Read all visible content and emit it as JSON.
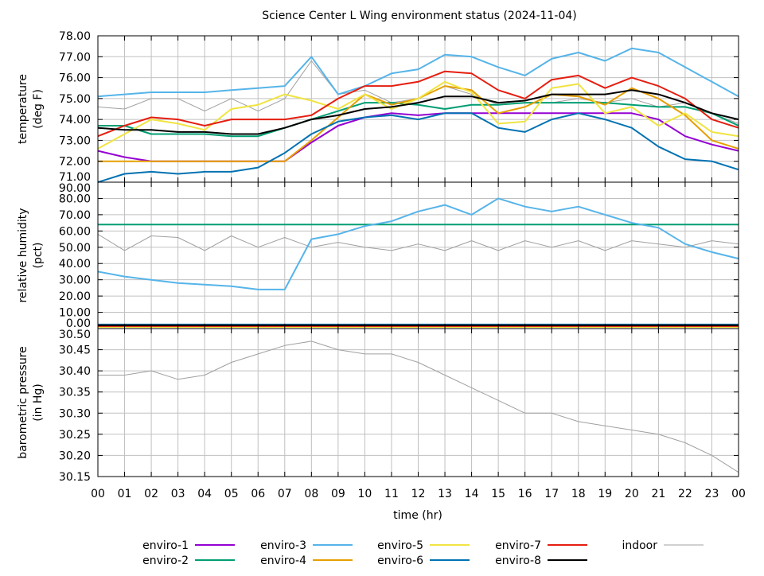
{
  "chart_data": {
    "type": "line",
    "title": "Science Center L Wing environment status (2024-11-04)",
    "xlabel": "time (hr)",
    "x_tick_labels": [
      "00",
      "01",
      "02",
      "03",
      "04",
      "05",
      "06",
      "07",
      "08",
      "09",
      "10",
      "11",
      "12",
      "13",
      "14",
      "15",
      "16",
      "17",
      "18",
      "19",
      "20",
      "21",
      "22",
      "23",
      "00"
    ],
    "xlim": [
      0,
      24
    ],
    "grid": true,
    "legend_position": "bottom",
    "x": [
      0,
      1,
      2,
      3,
      4,
      5,
      6,
      7,
      8,
      9,
      10,
      11,
      12,
      13,
      14,
      15,
      16,
      17,
      18,
      19,
      20,
      21,
      22,
      23,
      24
    ],
    "series_styles": [
      {
        "name": "enviro-1",
        "color": "#9400d3"
      },
      {
        "name": "enviro-2",
        "color": "#009e73"
      },
      {
        "name": "enviro-3",
        "color": "#56b4e9"
      },
      {
        "name": "enviro-4",
        "color": "#e69f00"
      },
      {
        "name": "enviro-5",
        "color": "#f0e442"
      },
      {
        "name": "enviro-6",
        "color": "#0072b2"
      },
      {
        "name": "enviro-7",
        "color": "#e51e10"
      },
      {
        "name": "enviro-8",
        "color": "#000000"
      },
      {
        "name": "indoor",
        "color": "#a0a0a0"
      }
    ],
    "panels": [
      {
        "ylabel": "temperature\n(deg F)",
        "ylim": [
          71,
          78
        ],
        "y_tick_labels": [
          "78.00",
          "77.00",
          "76.00",
          "75.00",
          "74.00",
          "73.00",
          "72.00",
          "71.00"
        ],
        "series": [
          {
            "name": "enviro-1",
            "values": [
              72.5,
              72.2,
              72.0,
              72.0,
              72.0,
              72.0,
              72.0,
              72.0,
              72.9,
              73.7,
              74.1,
              74.3,
              74.2,
              74.3,
              74.3,
              74.3,
              74.3,
              74.3,
              74.3,
              74.3,
              74.3,
              74.0,
              73.2,
              72.8,
              72.5
            ]
          },
          {
            "name": "enviro-2",
            "values": [
              73.7,
              73.7,
              73.3,
              73.3,
              73.3,
              73.2,
              73.2,
              73.6,
              74.0,
              74.4,
              74.8,
              74.8,
              74.7,
              74.5,
              74.7,
              74.7,
              74.8,
              74.8,
              74.8,
              74.8,
              74.7,
              74.6,
              74.6,
              74.3,
              73.7
            ]
          },
          {
            "name": "enviro-3",
            "values": [
              75.1,
              75.2,
              75.3,
              75.3,
              75.3,
              75.4,
              75.5,
              75.6,
              77.0,
              75.2,
              75.6,
              76.2,
              76.4,
              77.1,
              77.0,
              76.5,
              76.1,
              76.9,
              77.2,
              76.8,
              77.4,
              77.2,
              76.5,
              75.8,
              75.1
            ]
          },
          {
            "name": "enviro-4",
            "values": [
              72.0,
              72.0,
              72.0,
              72.0,
              72.0,
              72.0,
              72.0,
              72.0,
              73.0,
              74.1,
              75.2,
              74.7,
              75.0,
              75.6,
              75.4,
              74.3,
              74.6,
              75.2,
              75.1,
              74.7,
              75.5,
              75.0,
              74.2,
              73.0,
              72.6
            ]
          },
          {
            "name": "enviro-5",
            "values": [
              72.6,
              73.3,
              74.0,
              73.8,
              73.5,
              74.5,
              74.7,
              75.2,
              74.9,
              74.5,
              75.2,
              74.5,
              75.0,
              75.8,
              75.3,
              73.8,
              73.9,
              75.5,
              75.7,
              74.3,
              74.6,
              73.7,
              74.3,
              73.4,
              73.2
            ]
          },
          {
            "name": "enviro-6",
            "values": [
              71.0,
              71.4,
              71.5,
              71.4,
              71.5,
              71.5,
              71.7,
              72.4,
              73.3,
              73.9,
              74.1,
              74.2,
              74.0,
              74.3,
              74.3,
              73.6,
              73.4,
              74.0,
              74.3,
              74.0,
              73.6,
              72.7,
              72.1,
              72.0,
              71.6
            ]
          },
          {
            "name": "enviro-7",
            "values": [
              73.2,
              73.7,
              74.1,
              74.0,
              73.7,
              74.0,
              74.0,
              74.0,
              74.2,
              75.0,
              75.6,
              75.6,
              75.8,
              76.3,
              76.2,
              75.4,
              75.0,
              75.9,
              76.1,
              75.5,
              76.0,
              75.6,
              75.0,
              74.0,
              73.6
            ]
          },
          {
            "name": "enviro-8",
            "values": [
              73.6,
              73.5,
              73.5,
              73.4,
              73.4,
              73.3,
              73.3,
              73.6,
              74.0,
              74.2,
              74.5,
              74.6,
              74.8,
              75.1,
              75.1,
              74.8,
              74.9,
              75.2,
              75.2,
              75.2,
              75.4,
              75.2,
              74.8,
              74.3,
              74.0
            ]
          },
          {
            "name": "indoor",
            "values": [
              74.6,
              74.5,
              75.0,
              75.0,
              74.4,
              75.0,
              74.4,
              75.0,
              76.8,
              75.2,
              75.4,
              74.8,
              75.0,
              75.6,
              75.2,
              74.7,
              74.8,
              74.8,
              75.0,
              74.8,
              75.0,
              74.6,
              74.8,
              74.3,
              73.8
            ]
          }
        ]
      },
      {
        "ylabel": "relative humidity\n(pct)",
        "ylim": [
          0,
          90
        ],
        "y_tick_labels": [
          "90.00",
          "80.00",
          "70.00",
          "60.00",
          "50.00",
          "40.00",
          "30.00",
          "20.00",
          "10.00",
          "0.00"
        ],
        "series": [
          {
            "name": "enviro-1",
            "values": [
              1,
              1,
              1,
              1,
              1,
              1,
              1,
              1,
              1,
              1,
              1,
              1,
              1,
              1,
              1,
              1,
              1,
              1,
              1,
              1,
              1,
              1,
              1,
              1,
              1
            ]
          },
          {
            "name": "enviro-2",
            "values": [
              64,
              64,
              64,
              64,
              64,
              64,
              64,
              64,
              64,
              64,
              64,
              64,
              64,
              64,
              64,
              64,
              64,
              64,
              64,
              64,
              64,
              64,
              64,
              64,
              64
            ]
          },
          {
            "name": "enviro-3",
            "values": [
              35,
              32,
              30,
              28,
              27,
              26,
              24,
              24,
              55,
              58,
              63,
              66,
              72,
              76,
              70,
              80,
              75,
              72,
              75,
              70,
              65,
              62,
              52,
              47,
              43
            ]
          },
          {
            "name": "enviro-4",
            "values": [
              2,
              2,
              2,
              2,
              2,
              2,
              2,
              2,
              2,
              2,
              2,
              2,
              2,
              2,
              2,
              2,
              2,
              2,
              2,
              2,
              2,
              2,
              2,
              2,
              2
            ]
          },
          {
            "name": "enviro-5",
            "values": [
              1,
              1,
              1,
              1,
              1,
              1,
              1,
              1,
              1,
              1,
              1,
              1,
              1,
              1,
              1,
              1,
              1,
              1,
              1,
              1,
              1,
              1,
              1,
              1,
              1
            ]
          },
          {
            "name": "enviro-6",
            "values": [
              2.5,
              2.5,
              2.5,
              2.5,
              2.5,
              2.5,
              2.5,
              2.5,
              2.5,
              2.5,
              2.5,
              2.5,
              2.5,
              2.5,
              2.5,
              2.5,
              2.5,
              2.5,
              2.5,
              2.5,
              2.5,
              2.5,
              2.5,
              2.5,
              2.5
            ]
          },
          {
            "name": "enviro-7",
            "values": [
              1.5,
              1.5,
              1.5,
              1.5,
              1.5,
              1.5,
              1.5,
              1.5,
              1.5,
              1.5,
              1.5,
              1.5,
              1.5,
              1.5,
              1.5,
              1.5,
              1.5,
              1.5,
              1.5,
              1.5,
              1.5,
              1.5,
              1.5,
              1.5,
              1.5
            ]
          },
          {
            "name": "enviro-8",
            "values": [
              2,
              2,
              2,
              2,
              2,
              2,
              2,
              2,
              2,
              2,
              2,
              2,
              2,
              2,
              2,
              2,
              2,
              2,
              2,
              2,
              2,
              2,
              2,
              2,
              2
            ]
          },
          {
            "name": "indoor",
            "values": [
              58,
              48,
              57,
              56,
              48,
              57,
              50,
              56,
              50,
              53,
              50,
              48,
              52,
              48,
              54,
              48,
              54,
              50,
              54,
              48,
              54,
              52,
              50,
              54,
              52
            ]
          }
        ]
      },
      {
        "ylabel": "barometric pressure\n(in Hg)",
        "ylim": [
          30.15,
          30.5
        ],
        "y_tick_labels": [
          "30.50",
          "30.45",
          "30.40",
          "30.35",
          "30.30",
          "30.25",
          "30.20",
          "30.15"
        ],
        "series": [
          {
            "name": "indoor",
            "values": [
              30.39,
              30.39,
              30.4,
              30.38,
              30.39,
              30.42,
              30.44,
              30.46,
              30.47,
              30.45,
              30.44,
              30.44,
              30.42,
              30.39,
              30.36,
              30.33,
              30.3,
              30.3,
              30.28,
              30.27,
              30.26,
              30.25,
              30.23,
              30.2,
              30.16
            ]
          }
        ]
      }
    ]
  }
}
